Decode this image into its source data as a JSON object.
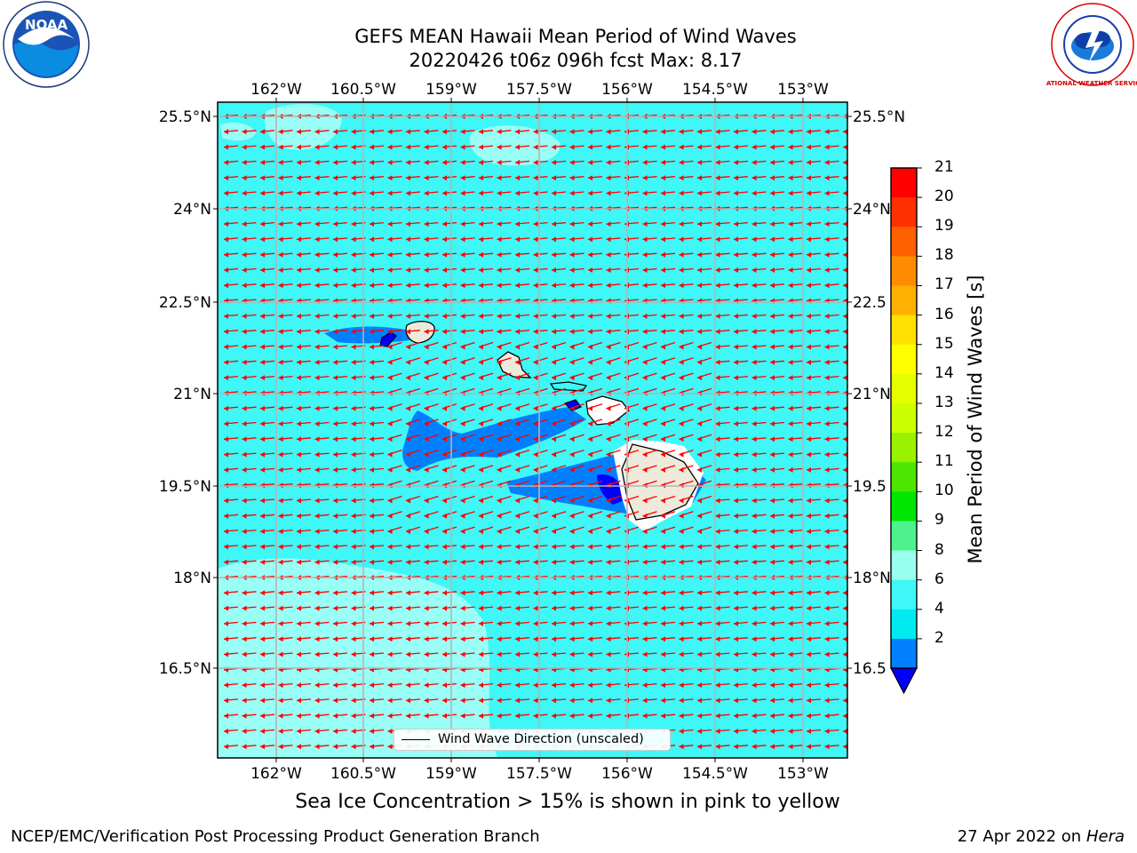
{
  "header": {
    "title_line1": "GEFS MEAN Hawaii Mean Period of Wind Waves",
    "title_line2": "20220426 t06z 096h fcst   Max: 8.17"
  },
  "map": {
    "lon_labels": [
      "162°W",
      "160.5°W",
      "159°W",
      "157.5°W",
      "156°W",
      "154.5°W",
      "153°W"
    ],
    "lat_labels": [
      "25.5°N",
      "24°N",
      "22.5°N",
      "21°N",
      "19.5°N",
      "18°N",
      "16.5°N"
    ],
    "lat_labels_right": [
      "25.5°N",
      "24°N",
      "22.5",
      "21°N",
      "19.5",
      "18°N",
      "16.5"
    ],
    "ocean_color": "#3ff7f7",
    "arrow_color": "#ff0000",
    "gridlines": true
  },
  "legend": {
    "label": "Wind Wave Direction (unscaled)"
  },
  "colorbar": {
    "title": "Mean Period of Wind Waves [s]",
    "ticks": [
      "21",
      "20",
      "19",
      "18",
      "17",
      "16",
      "15",
      "14",
      "13",
      "12",
      "11",
      "10",
      "9",
      "8",
      "6",
      "4",
      "2"
    ],
    "colors": [
      "#ff0000",
      "#ff3000",
      "#ff6000",
      "#ff8c00",
      "#ffb000",
      "#ffe000",
      "#ffff00",
      "#e6ff00",
      "#ccff00",
      "#99f200",
      "#4de600",
      "#00e600",
      "#4df28c",
      "#99ffee",
      "#40f7f7",
      "#00eaf0",
      "#0080ff"
    ],
    "under_color": "#0000ff"
  },
  "notes": {
    "sea_ice": "Sea Ice Concentration > 15% is shown in pink to yellow"
  },
  "footer": {
    "left": "NCEP/EMC/Verification Post Processing Product Generation Branch",
    "right_prefix": "27 Apr 2022 on ",
    "right_host": "Hera"
  },
  "logos": {
    "noaa_text": "NOAA",
    "nws_text": "NATIONAL WEATHER SERVICE"
  }
}
